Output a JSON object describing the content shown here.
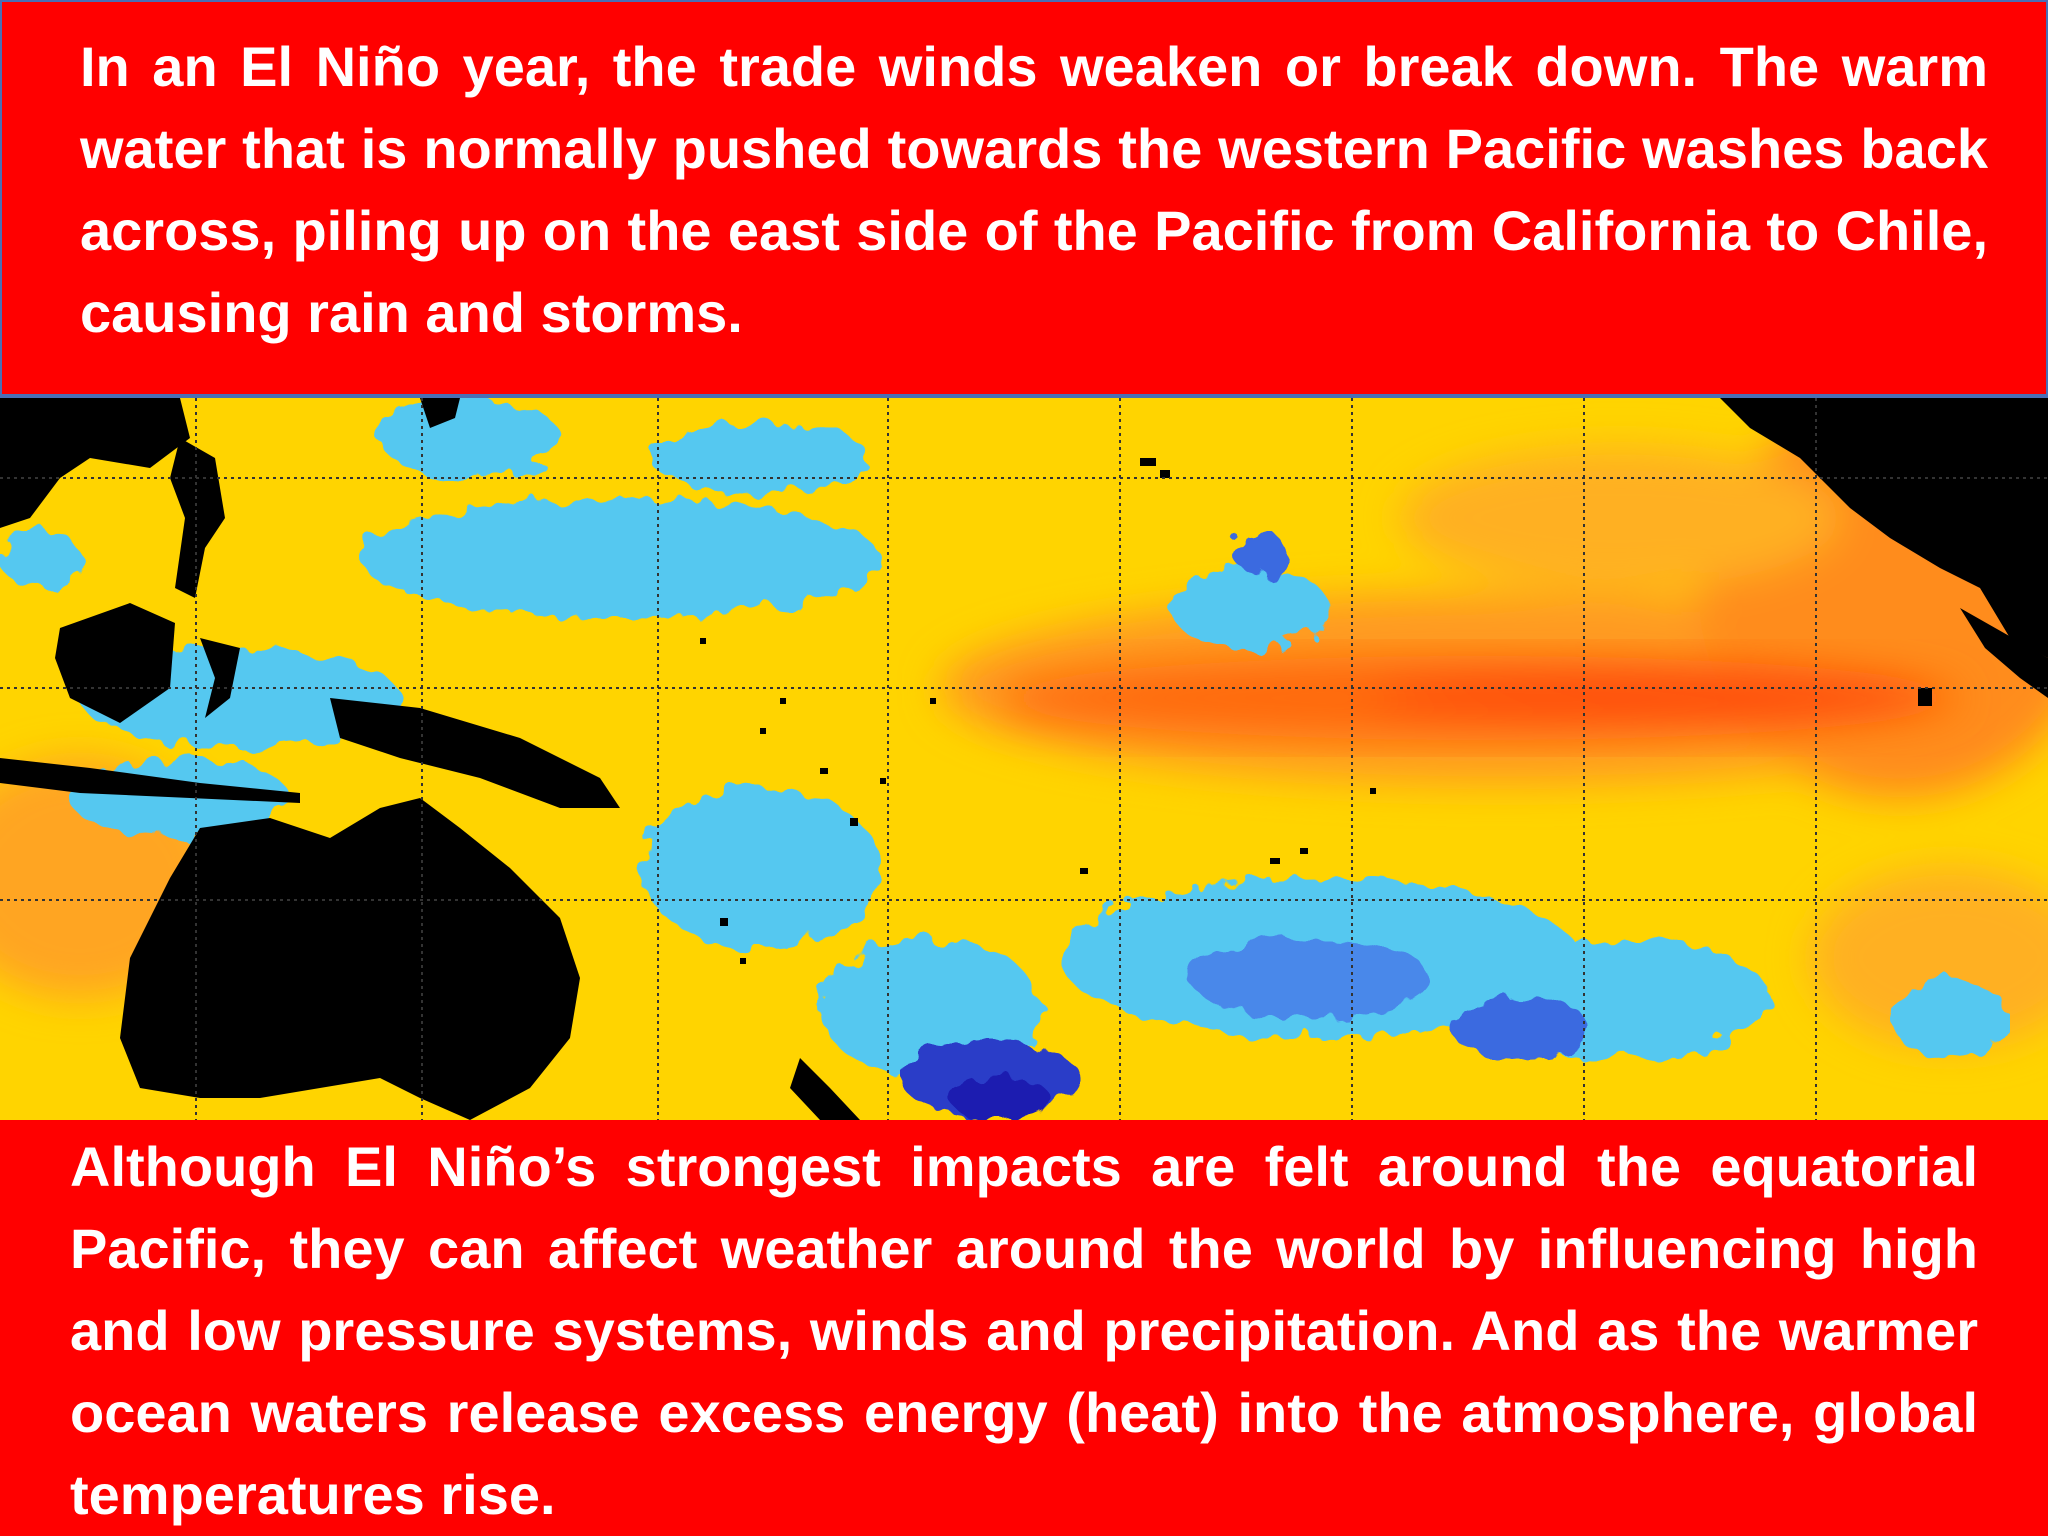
{
  "slide": {
    "top_paragraph": "In an El Niño year, the trade winds weaken or break down. The warm water that is normally pushed towards the western Pacific washes back across, piling up on the east side of the Pacific from California to Chile, causing rain and storms.",
    "bottom_paragraph": "Although El Niño’s strongest impacts are felt around the equatorial Pacific, they can affect weather around the world by influencing high and low pressure systems, winds and precipitation. And as the warmer ocean waters release excess energy (heat) into the atmosphere, global temperatures rise."
  },
  "map": {
    "image": "sea-surface-temperature-anomaly-map",
    "colors": {
      "land": "#000000",
      "normal": "#ffd400",
      "warm": "#ff8c1a",
      "hot": "#ff5a10",
      "cool": "#55c8f0",
      "cold": "#3a6ae0",
      "coldest": "#1a1ab0",
      "grid": "#333333"
    }
  },
  "theme": {
    "background": "#ff0000",
    "text_color": "#ffffff",
    "border": "#4a6fb5"
  }
}
